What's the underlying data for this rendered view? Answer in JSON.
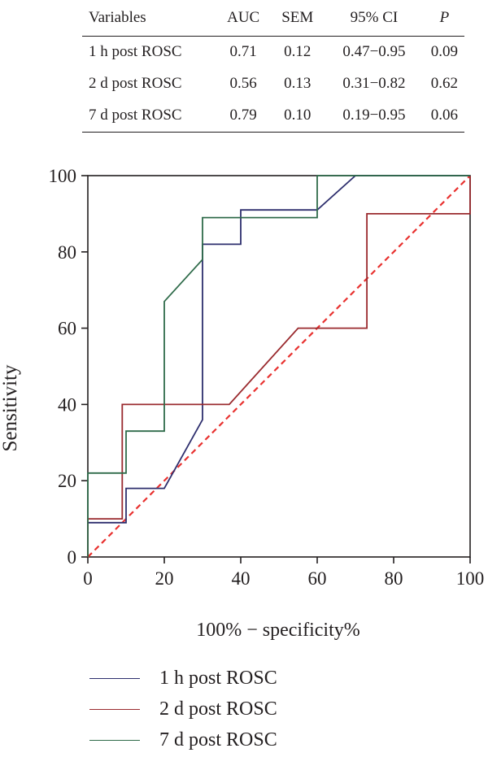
{
  "table": {
    "headers": [
      "Variables",
      "AUC",
      "SEM",
      "95% CI",
      "P"
    ],
    "rows": [
      [
        "1 h post ROSC",
        "0.71",
        "0.12",
        "0.47−0.95",
        "0.09"
      ],
      [
        "2 d post ROSC",
        "0.56",
        "0.13",
        "0.31−0.82",
        "0.62"
      ],
      [
        "7 d post ROSC",
        "0.79",
        "0.10",
        "0.19−0.95",
        "0.06"
      ]
    ]
  },
  "chart_data": {
    "type": "line",
    "title": "",
    "xlabel": "100% − specificity%",
    "ylabel": "Sensitivity",
    "xlim": [
      0,
      100
    ],
    "ylim": [
      0,
      100
    ],
    "xticks": [
      0,
      20,
      40,
      60,
      80,
      100
    ],
    "yticks": [
      0,
      20,
      40,
      60,
      80,
      100
    ],
    "grid": false,
    "legend_position": "bottom",
    "reference_line": {
      "x": [
        0,
        100
      ],
      "y": [
        0,
        100
      ],
      "color": "#e8312f",
      "style": "dashed"
    },
    "series": [
      {
        "name": "1 h post ROSC",
        "color": "#2e2f6e",
        "x": [
          0,
          0,
          10,
          10,
          20,
          30,
          30,
          40,
          40,
          60,
          70,
          100
        ],
        "y": [
          0,
          9,
          9,
          18,
          18,
          36,
          82,
          82,
          91,
          91,
          100,
          100
        ]
      },
      {
        "name": "2 d post ROSC",
        "color": "#9a2a2e",
        "x": [
          0,
          0,
          9,
          9,
          37,
          55,
          73,
          73,
          100,
          100
        ],
        "y": [
          0,
          10,
          10,
          40,
          40,
          60,
          60,
          90,
          90,
          100
        ]
      },
      {
        "name": "7 d post ROSC",
        "color": "#2f6b4a",
        "x": [
          0,
          0,
          10,
          10,
          20,
          20,
          30,
          30,
          60,
          60,
          100
        ],
        "y": [
          0,
          22,
          22,
          33,
          33,
          67,
          78,
          89,
          89,
          100,
          100
        ]
      }
    ]
  }
}
